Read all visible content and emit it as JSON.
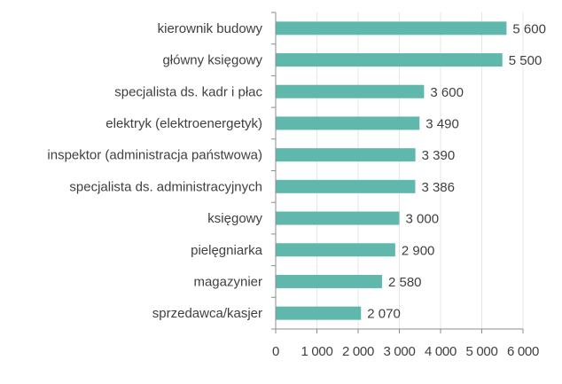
{
  "chart_data": {
    "type": "bar",
    "orientation": "horizontal",
    "title": "",
    "xlabel": "",
    "ylabel": "",
    "categories": [
      "kierownik budowy",
      "główny księgowy",
      "specjalista ds. kadr i płac",
      "elektryk (elektroenergetyk)",
      "inspektor (administracja państwowa)",
      "specjalista ds. administracyjnych",
      "księgowy",
      "pielęgniarka",
      "magazynier",
      "sprzedawca/kasjer"
    ],
    "values": [
      5600,
      5500,
      3600,
      3490,
      3390,
      3386,
      3000,
      2900,
      2580,
      2070
    ],
    "value_labels": [
      "5 600",
      "5 500",
      "3 600",
      "3 490",
      "3 390",
      "3 386",
      "3 000",
      "2 900",
      "2 580",
      "2 070"
    ],
    "xlim": [
      0,
      6000
    ],
    "xticks": [
      0,
      1000,
      2000,
      3000,
      4000,
      5000,
      6000
    ],
    "xtick_labels": [
      "0",
      "1 000",
      "2 000",
      "3 000",
      "4 000",
      "5 000",
      "6 000"
    ],
    "grid": true,
    "bar_color": "#5fb8ab"
  }
}
